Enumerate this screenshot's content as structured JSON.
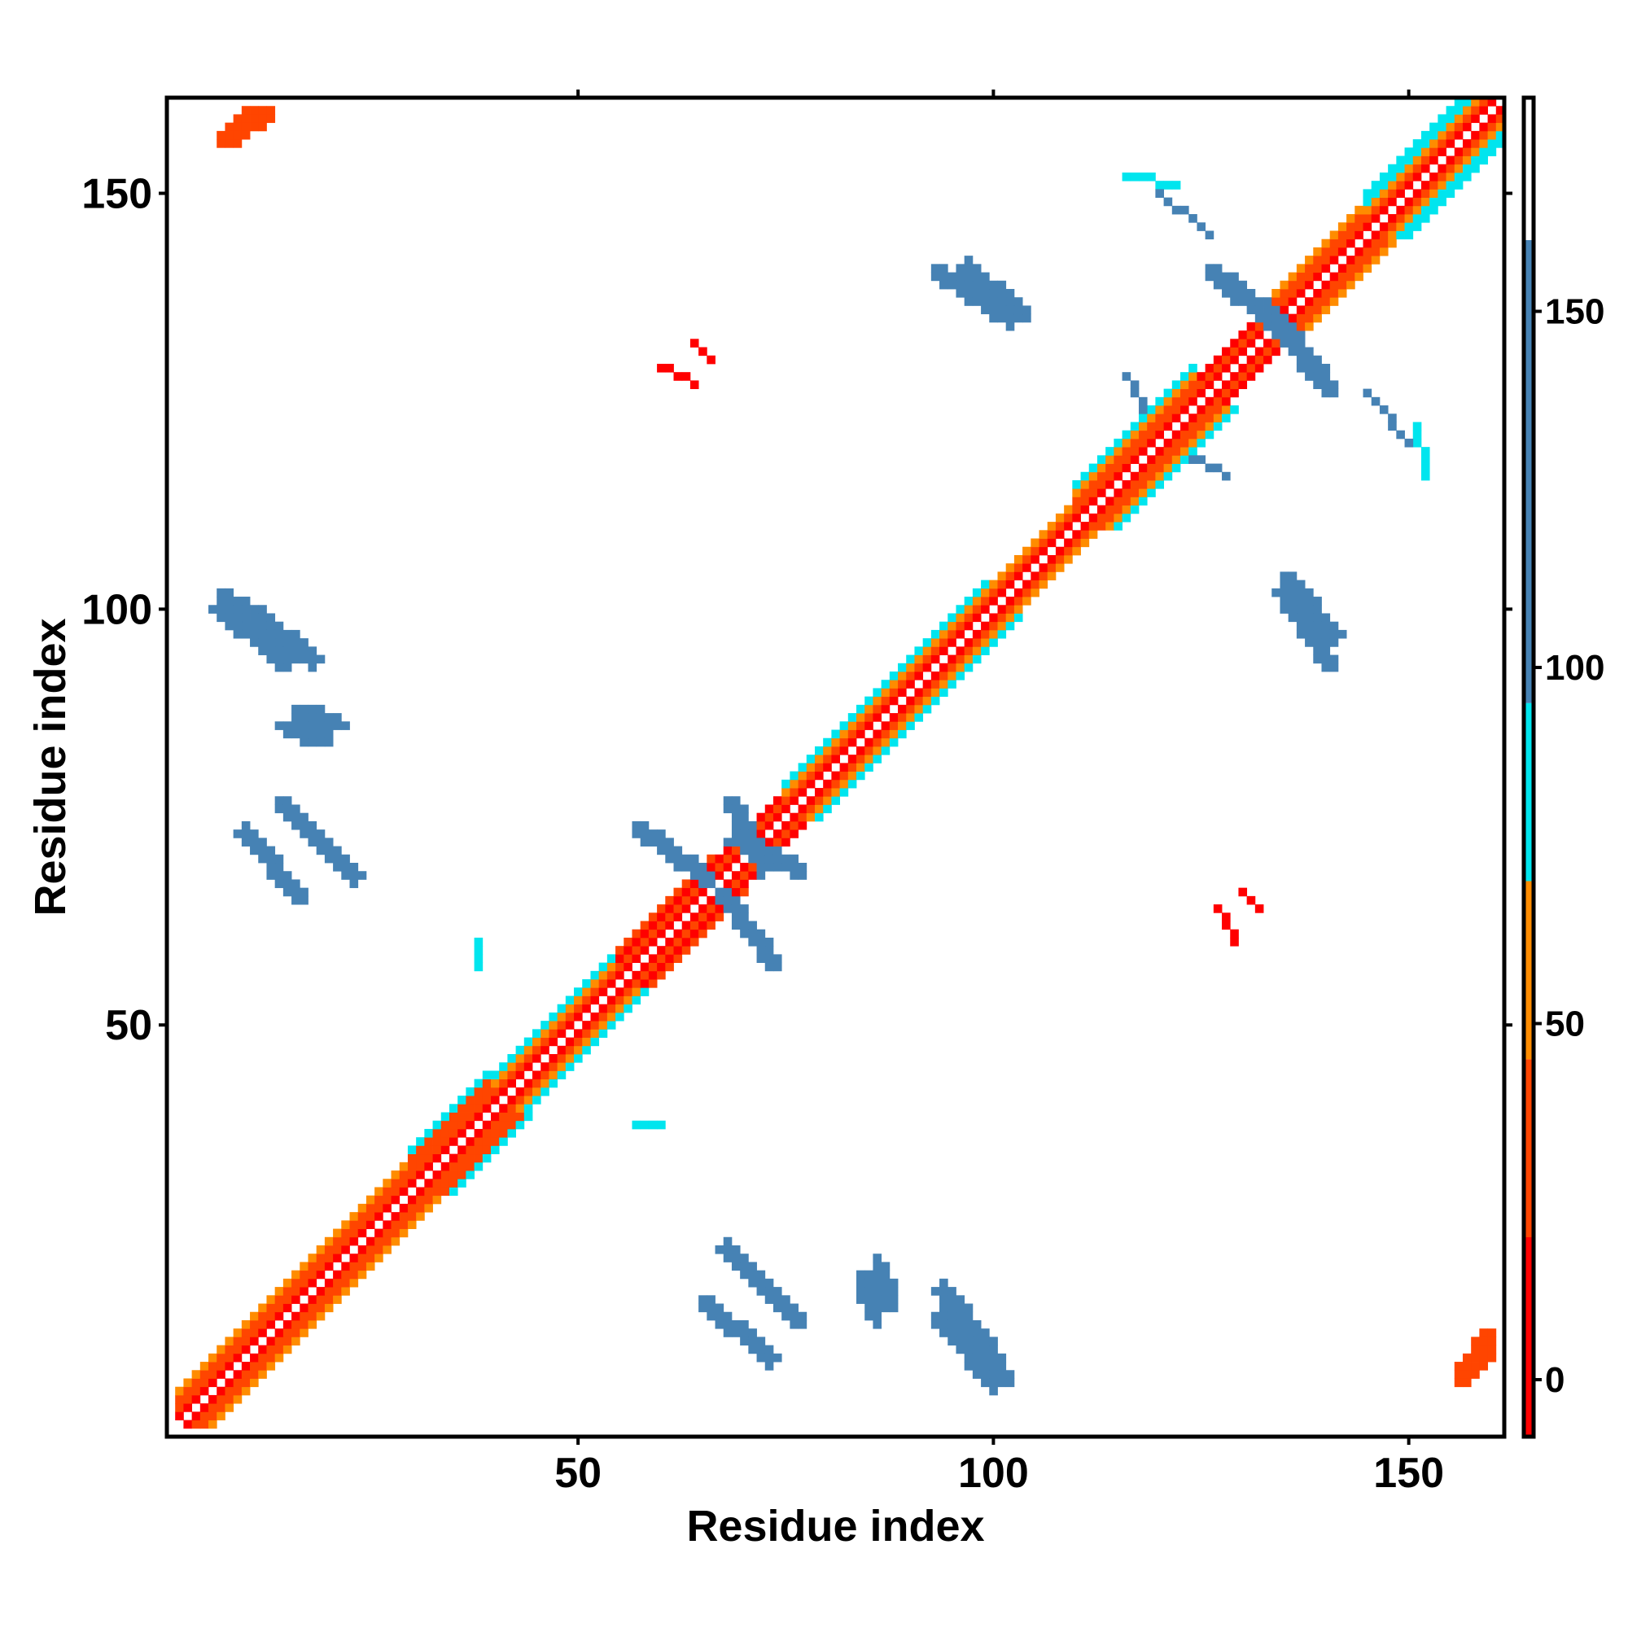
{
  "chart_data": {
    "type": "heatmap",
    "title": "",
    "xlabel": "Residue index",
    "ylabel": "Residue index",
    "xlim": [
      0.5,
      161.5
    ],
    "ylim": [
      0.5,
      161.5
    ],
    "x_ticks": [
      50,
      100,
      150
    ],
    "y_ticks": [
      50,
      100,
      150
    ],
    "colorbar": {
      "ticks": [
        0,
        50,
        100,
        150
      ],
      "range": [
        -8,
        180
      ],
      "bands": [
        {
          "from": -8,
          "to": 20,
          "color": "#ff0000"
        },
        {
          "from": 20,
          "to": 45,
          "color": "#ff4500"
        },
        {
          "from": 45,
          "to": 70,
          "color": "#ff8c00"
        },
        {
          "from": 70,
          "to": 95,
          "color": "#00e5ee"
        },
        {
          "from": 95,
          "to": 160,
          "color": "#4682b4"
        },
        {
          "from": 160,
          "to": 180,
          "color": "#ffffff"
        }
      ]
    },
    "grid": false,
    "symmetric_about_diagonal": true,
    "diagonal_bands": [
      {
        "from": 2,
        "to": 30,
        "offsets": {
          "1": 15,
          "2": 40,
          "3": 25,
          "4": 60
        }
      },
      {
        "from": 30,
        "to": 40,
        "offsets": {
          "1": 12,
          "2": 35,
          "3": 22,
          "4": 30,
          "5": 85
        }
      },
      {
        "from": 40,
        "to": 55,
        "offsets": {
          "1": 15,
          "2": 40,
          "3": 60,
          "4": 80
        }
      },
      {
        "from": 55,
        "to": 67,
        "offsets": {
          "1": 10,
          "2": 25,
          "3": 10,
          "4": 35
        }
      },
      {
        "from": 67,
        "to": 75,
        "offsets": {
          "1": 10,
          "2": 20,
          "3": 10
        }
      },
      {
        "from": 75,
        "to": 85,
        "offsets": {
          "1": 15,
          "2": 40,
          "3": 60,
          "4": 85
        }
      },
      {
        "from": 85,
        "to": 100,
        "offsets": {
          "1": 15,
          "2": 40,
          "3": 65,
          "4": 85
        }
      },
      {
        "from": 100,
        "to": 110,
        "offsets": {
          "1": 12,
          "2": 30,
          "3": 50
        }
      },
      {
        "from": 110,
        "to": 125,
        "offsets": {
          "1": 15,
          "2": 40,
          "3": 30,
          "4": 60,
          "5": 85
        }
      },
      {
        "from": 125,
        "to": 133,
        "offsets": {
          "1": 10,
          "2": 25,
          "3": 10
        }
      },
      {
        "from": 133,
        "to": 145,
        "offsets": {
          "1": 15,
          "2": 40,
          "3": 30,
          "4": 55
        }
      },
      {
        "from": 145,
        "to": 161,
        "offsets": {
          "1": 15,
          "2": 40,
          "3": 60,
          "4": 85,
          "5": 85
        }
      }
    ],
    "contact_regions": [
      {
        "cells": [
          [
            10,
            160
          ],
          [
            11,
            160
          ],
          [
            12,
            160
          ],
          [
            13,
            160
          ],
          [
            9,
            159
          ],
          [
            10,
            159
          ],
          [
            11,
            159
          ],
          [
            12,
            159
          ],
          [
            13,
            159
          ],
          [
            8,
            158
          ],
          [
            9,
            158
          ],
          [
            10,
            158
          ],
          [
            11,
            158
          ],
          [
            12,
            158
          ],
          [
            7,
            157
          ],
          [
            8,
            157
          ],
          [
            9,
            157
          ],
          [
            10,
            157
          ],
          [
            7,
            156
          ],
          [
            8,
            156
          ],
          [
            9,
            156
          ]
        ],
        "value": 35
      },
      {
        "cells": [
          [
            160,
            10
          ],
          [
            160,
            11
          ],
          [
            160,
            12
          ],
          [
            160,
            13
          ],
          [
            159,
            9
          ],
          [
            159,
            10
          ],
          [
            159,
            11
          ],
          [
            159,
            12
          ],
          [
            159,
            13
          ],
          [
            158,
            8
          ],
          [
            158,
            9
          ],
          [
            158,
            10
          ],
          [
            158,
            11
          ],
          [
            158,
            12
          ],
          [
            157,
            7
          ],
          [
            157,
            8
          ],
          [
            157,
            9
          ],
          [
            157,
            10
          ],
          [
            156,
            7
          ],
          [
            156,
            8
          ],
          [
            156,
            9
          ]
        ],
        "value": 35
      },
      {
        "line": [
          [
            7,
            102
          ],
          [
            18,
            94
          ]
        ],
        "width": 2,
        "value": 115
      },
      {
        "line": [
          [
            95,
            17
          ],
          [
            100,
            10
          ]
        ],
        "width": 2,
        "value": 115
      },
      {
        "line": [
          [
            16,
            88
          ],
          [
            20,
            86
          ]
        ],
        "width": 3,
        "value": 100
      },
      {
        "line": [
          [
            14,
            77
          ],
          [
            23,
            68
          ]
        ],
        "width": 2,
        "value": 115
      },
      {
        "line": [
          [
            68,
            77
          ],
          [
            72,
            69
          ]
        ],
        "width": 2,
        "value": 115
      },
      {
        "line": [
          [
            57,
            74
          ],
          [
            65,
            68
          ]
        ],
        "width": 2,
        "value": 115
      },
      {
        "line": [
          [
            67,
            66
          ],
          [
            73,
            58
          ]
        ],
        "width": 2,
        "value": 115
      },
      {
        "line": [
          [
            60,
            129
          ],
          [
            64,
            127
          ]
        ],
        "width": 1,
        "value": 15
      },
      {
        "line": [
          [
            93,
            141
          ],
          [
            102,
            135
          ]
        ],
        "width": 2,
        "value": 115
      },
      {
        "line": [
          [
            126,
            141
          ],
          [
            134,
            135
          ]
        ],
        "width": 2,
        "value": 115
      },
      {
        "line": [
          [
            134,
            134
          ],
          [
            139,
            128
          ]
        ],
        "width": 2,
        "value": 115
      },
      {
        "line": [
          [
            135,
            104
          ],
          [
            141,
            97
          ]
        ],
        "width": 2,
        "value": 115
      },
      {
        "line": [
          [
            65,
            17
          ],
          [
            73,
            10
          ]
        ],
        "width": 2,
        "value": 115
      },
      {
        "line": [
          [
            84,
            19
          ],
          [
            86,
            16
          ]
        ],
        "width": 3,
        "value": 100
      },
      {
        "line": [
          [
            93,
            15
          ],
          [
            100,
            7
          ]
        ],
        "width": 2,
        "value": 115
      },
      {
        "line": [
          [
            130,
            66
          ],
          [
            132,
            64
          ]
        ],
        "width": 1,
        "value": 15
      },
      {
        "line": [
          [
            57,
            38
          ],
          [
            60,
            38
          ]
        ],
        "width": 1,
        "value": 85
      },
      {
        "line": [
          [
            116,
            152
          ],
          [
            122,
            151
          ]
        ],
        "width": 1,
        "value": 90
      },
      {
        "line": [
          [
            116,
            128
          ],
          [
            118,
            124
          ]
        ],
        "width": 1,
        "value": 95
      },
      {
        "line": [
          [
            145,
            126
          ],
          [
            150,
            120
          ]
        ],
        "width": 1,
        "value": 95
      }
    ]
  }
}
